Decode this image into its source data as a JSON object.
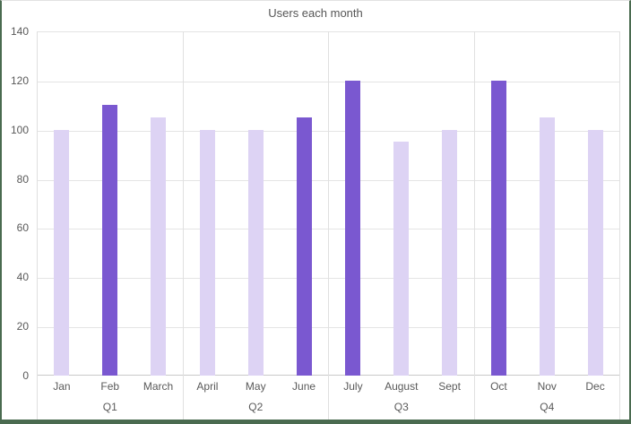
{
  "title": "Users each month",
  "chart_data": {
    "type": "bar",
    "title": "Users each month",
    "categories": [
      "Jan",
      "Feb",
      "March",
      "April",
      "May",
      "June",
      "July",
      "August",
      "Sept",
      "Oct",
      "Nov",
      "Dec"
    ],
    "values": [
      100,
      110,
      105,
      100,
      100,
      105,
      120,
      95,
      100,
      120,
      105,
      100
    ],
    "emphasis": [
      false,
      true,
      false,
      false,
      false,
      true,
      true,
      false,
      false,
      true,
      false,
      false
    ],
    "groups": [
      {
        "label": "Q1"
      },
      {
        "label": "Q2"
      },
      {
        "label": "Q3"
      },
      {
        "label": "Q4"
      }
    ],
    "group_size": 3,
    "xlabel": "",
    "ylabel": "",
    "ylim": [
      0,
      140
    ],
    "yticks": [
      0,
      20,
      40,
      60,
      80,
      100,
      120,
      140
    ],
    "grid": true,
    "legend": false
  },
  "colors": {
    "background": "#ffffff",
    "bar_default": "#ddd3f4",
    "bar_emphasis": "#7a58d0",
    "gridline": "#e4e4e4",
    "axis_line": "#c9c9c9",
    "divider": "#e0e0e0",
    "frame": "#4a6b50",
    "frame_top": "#e2e2e2",
    "text": "#595959",
    "title_text": "#565656"
  }
}
